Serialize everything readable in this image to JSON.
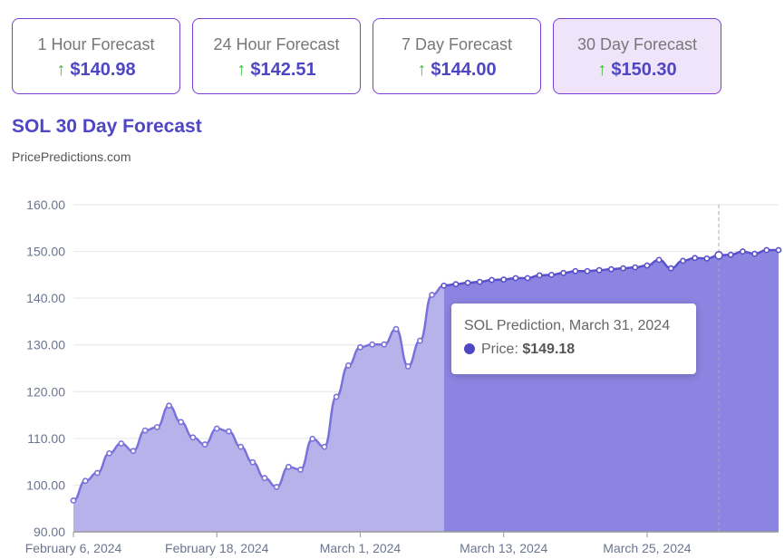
{
  "cards": [
    {
      "label": "1 Hour Forecast",
      "value": "$140.98",
      "active": false
    },
    {
      "label": "24 Hour Forecast",
      "value": "$142.51",
      "active": false
    },
    {
      "label": "7 Day Forecast",
      "value": "$144.00",
      "active": false
    },
    {
      "label": "30 Day Forecast",
      "value": "$150.30",
      "active": true
    }
  ],
  "arrow_icon": "↑",
  "colors": {
    "accent": "#4f46c4",
    "up": "#3cbf3c",
    "line": "#7a72da",
    "history_fill": "#b7b3ea",
    "forecast_fill": "#8b84e0"
  },
  "chart_data": {
    "type": "area",
    "title": "SOL 30 Day Forecast",
    "subtitle": "PricePredictions.com",
    "ylim": [
      90,
      160
    ],
    "yticks": [
      "90.00",
      "100.00",
      "110.00",
      "120.00",
      "130.00",
      "140.00",
      "150.00",
      "160.00"
    ],
    "xticks": [
      "February 6, 2024",
      "February 18, 2024",
      "March 1, 2024",
      "March 13, 2024",
      "March 25, 2024"
    ],
    "x_start": "2024-02-06",
    "forecast_start": "2024-03-08",
    "values": [
      96.7,
      100.9,
      102.6,
      106.8,
      108.9,
      107.3,
      111.7,
      112.4,
      117.0,
      113.5,
      110.2,
      108.7,
      112.1,
      111.5,
      108.2,
      104.9,
      101.5,
      99.6,
      103.9,
      103.3,
      109.9,
      108.2,
      118.9,
      125.6,
      129.5,
      130.1,
      130.1,
      133.4,
      125.4,
      130.9,
      140.7,
      142.7,
      143.0,
      143.3,
      143.5,
      143.9,
      144.0,
      144.3,
      144.3,
      144.9,
      145.0,
      145.4,
      145.8,
      145.8,
      146.0,
      146.2,
      146.4,
      146.6,
      147.0,
      148.2,
      146.4,
      148.0,
      148.6,
      148.5,
      149.18,
      149.3,
      150.0,
      149.5,
      150.3,
      150.3
    ],
    "grid": true,
    "tooltip": {
      "title": "SOL Prediction, March 31, 2024",
      "label": "Price:",
      "value": "$149.18",
      "date": "2024-03-31"
    }
  }
}
